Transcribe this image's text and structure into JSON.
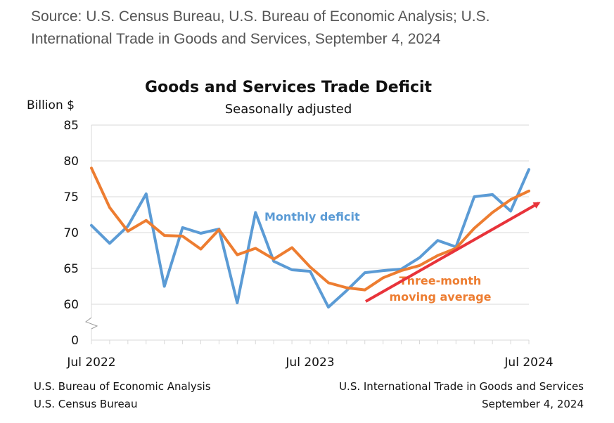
{
  "source": {
    "line1": "Source: U.S. Census Bureau, U.S. Bureau of Economic Analysis; U.S.",
    "line2": "International Trade in Goods and Services, September 4, 2024"
  },
  "footer": {
    "left_line1": "U.S. Bureau of Economic Analysis",
    "left_line2": "U.S. Census Bureau",
    "right_line1": "U.S. International Trade in Goods and Services",
    "right_line2": "September 4, 2024"
  },
  "colors": {
    "monthly": "#5b9bd5",
    "average": "#ed7d31",
    "trend_arrow": "#e8333a",
    "grid": "#d9d9d9"
  },
  "chart_data": {
    "type": "line",
    "title": "Goods and Services Trade Deficit",
    "subtitle": "Seasonally adjusted",
    "ylabel": "Billion $",
    "xlabel": "",
    "y_ticks": [
      0,
      60,
      65,
      70,
      75,
      80,
      85
    ],
    "ylim": [
      0,
      85
    ],
    "y_axis_break": "between 0 and 60",
    "x_tick_labels": [
      {
        "index": 0,
        "label": "Jul 2022"
      },
      {
        "index": 12,
        "label": "Jul 2023"
      },
      {
        "index": 24,
        "label": "Jul 2024"
      }
    ],
    "x": [
      "Jul 2022",
      "Aug 2022",
      "Sep 2022",
      "Oct 2022",
      "Nov 2022",
      "Dec 2022",
      "Jan 2023",
      "Feb 2023",
      "Mar 2023",
      "Apr 2023",
      "May 2023",
      "Jun 2023",
      "Jul 2023",
      "Aug 2023",
      "Sep 2023",
      "Oct 2023",
      "Nov 2023",
      "Dec 2023",
      "Jan 2024",
      "Feb 2024",
      "Mar 2024",
      "Apr 2024",
      "May 2024",
      "Jun 2024",
      "Jul 2024"
    ],
    "grid": true,
    "series": [
      {
        "name": "Monthly deficit",
        "values": [
          71.0,
          68.5,
          70.9,
          75.4,
          62.5,
          70.7,
          69.9,
          70.5,
          60.2,
          72.8,
          66.0,
          64.8,
          64.6,
          59.6,
          61.9,
          64.4,
          64.7,
          64.9,
          66.5,
          68.9,
          68.0,
          75.0,
          75.3,
          73.0,
          78.8
        ]
      },
      {
        "name": "Three-month moving average",
        "values": [
          79.0,
          73.5,
          70.2,
          71.7,
          69.6,
          69.5,
          67.7,
          70.4,
          66.9,
          67.8,
          66.3,
          67.9,
          65.2,
          63.0,
          62.3,
          62.0,
          63.7,
          64.7,
          65.4,
          66.8,
          67.8,
          70.6,
          72.8,
          74.6,
          75.8
        ]
      }
    ],
    "annotations": [
      {
        "text": "Monthly deficit",
        "series": "Monthly deficit"
      },
      {
        "lines": [
          "Three-month",
          "moving average"
        ],
        "series": "Three-month moving average"
      }
    ],
    "trend_arrow": {
      "direction": "up-right",
      "from_x": "Oct 2023",
      "to_x": "Jul 2024"
    }
  }
}
